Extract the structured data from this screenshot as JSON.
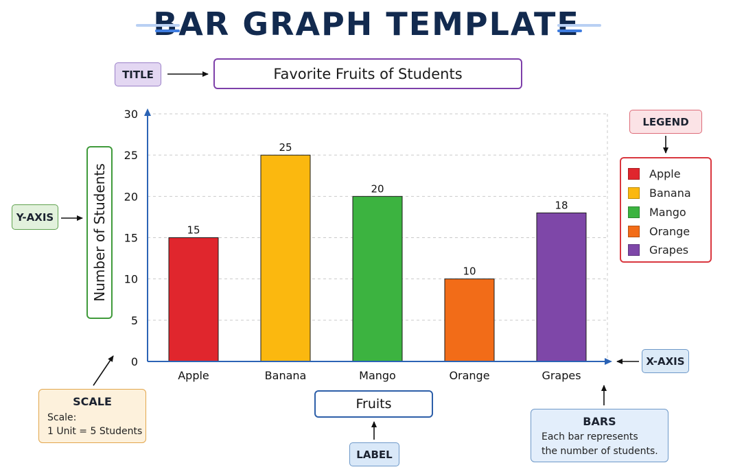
{
  "header": {
    "title": "BAR GRAPH TEMPLATE"
  },
  "annotations": {
    "title_tag": "TITLE",
    "yaxis_tag": "Y-AXIS",
    "legend_tag": "LEGEND",
    "xaxis_tag": "X-AXIS",
    "label_tag": "LABEL",
    "scale": {
      "heading": "SCALE",
      "line1": "Scale:",
      "line2": "1 Unit = 5 Students"
    },
    "bars": {
      "heading": "BARS",
      "line1": "Each bar represents",
      "line2": "the number of students."
    }
  },
  "chart_data": {
    "type": "bar",
    "title": "Favorite Fruits of Students",
    "xlabel": "Fruits",
    "ylabel": "Number of Students",
    "categories": [
      "Apple",
      "Banana",
      "Mango",
      "Orange",
      "Grapes"
    ],
    "values": [
      15,
      25,
      20,
      10,
      18
    ],
    "colors": [
      "#e0262d",
      "#fbb80f",
      "#3cb340",
      "#f26c18",
      "#7e47a8"
    ],
    "ylim": [
      0,
      30
    ],
    "yticks": [
      0,
      5,
      10,
      15,
      20,
      25,
      30
    ],
    "grid": true,
    "legend": {
      "position": "right",
      "entries": [
        "Apple",
        "Banana",
        "Mango",
        "Orange",
        "Grapes"
      ]
    }
  },
  "colors": {
    "axis": "#2b63b5",
    "grid": "#c9c9c9",
    "header_accent": "#3f7de0"
  }
}
